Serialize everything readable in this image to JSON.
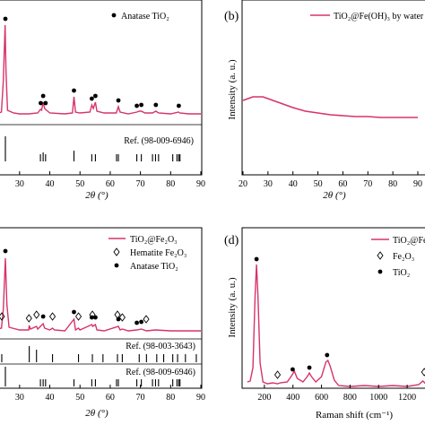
{
  "chart_data": [
    {
      "panel": "a",
      "type": "line",
      "xlabel": "2θ (°)",
      "xlim": [
        20,
        90
      ],
      "xticks": [
        30,
        40,
        50,
        60,
        70,
        80,
        90
      ],
      "legend": [
        "Anatase TiO₂"
      ],
      "ref_label": "Ref. (98-009-6946)",
      "series": [
        {
          "name": "pattern",
          "color": "#d6336c",
          "points": [
            [
              20,
              128
            ],
            [
              22,
              127
            ],
            [
              24,
              125
            ],
            [
              24.6,
              90
            ],
            [
              25.2,
              28
            ],
            [
              25.5,
              80
            ],
            [
              26,
              123
            ],
            [
              28,
              126
            ],
            [
              30,
              127
            ],
            [
              33,
              127
            ],
            [
              36,
              126
            ],
            [
              36.9,
              122
            ],
            [
              37.3,
              123
            ],
            [
              37.8,
              114
            ],
            [
              38.3,
              121
            ],
            [
              38.6,
              122
            ],
            [
              40,
              126
            ],
            [
              45,
              127
            ],
            [
              47.5,
              126
            ],
            [
              48.0,
              108
            ],
            [
              48.5,
              125
            ],
            [
              50,
              126
            ],
            [
              53.3,
              125
            ],
            [
              53.9,
              117
            ],
            [
              54.4,
              121
            ],
            [
              55.1,
              114
            ],
            [
              55.6,
              124
            ],
            [
              58,
              126
            ],
            [
              62,
              126
            ],
            [
              62.7,
              119
            ],
            [
              63.3,
              125
            ],
            [
              66,
              127
            ],
            [
              68.8,
              125
            ],
            [
              69.6,
              124
            ],
            [
              70.3,
              124
            ],
            [
              71.5,
              126
            ],
            [
              74,
              126
            ],
            [
              75.1,
              124
            ],
            [
              76,
              126
            ],
            [
              80,
              127
            ],
            [
              82.6,
              125
            ],
            [
              83,
              126
            ],
            [
              86,
              127
            ],
            [
              90,
              127
            ]
          ]
        }
      ],
      "markers": [
        {
          "x": 25.3,
          "label": "●"
        },
        {
          "x": 37.0,
          "label": "●"
        },
        {
          "x": 37.8,
          "label": "●"
        },
        {
          "x": 38.6,
          "label": "●"
        },
        {
          "x": 48.0,
          "label": "●"
        },
        {
          "x": 53.9,
          "label": "●"
        },
        {
          "x": 55.1,
          "label": "●"
        },
        {
          "x": 62.7,
          "label": "●"
        },
        {
          "x": 68.8,
          "label": "●"
        },
        {
          "x": 70.3,
          "label": "●"
        },
        {
          "x": 75.1,
          "label": "●"
        },
        {
          "x": 82.7,
          "label": "●"
        }
      ],
      "ref_sticks": [
        25.3,
        36.9,
        37.8,
        38.6,
        48.0,
        53.9,
        55.1,
        62.1,
        62.7,
        68.8,
        70.3,
        74.0,
        75.0,
        76.0,
        80.7,
        82.1,
        82.7,
        83.1
      ]
    },
    {
      "panel": "b",
      "type": "line",
      "label": "(b)",
      "xlabel": "2θ (°)",
      "ylabel": "Intensity (a. u.)",
      "xlim": [
        20,
        90
      ],
      "xticks": [
        20,
        30,
        40,
        50,
        60,
        70,
        80,
        90
      ],
      "legend": [
        "TiO₂@Fe(OH)₃ by water"
      ],
      "series": [
        {
          "name": "TiO₂@Fe(OH)₃ by water",
          "color": "#d6336c",
          "points": [
            [
              20,
              112
            ],
            [
              22,
              110
            ],
            [
              24,
              108
            ],
            [
              26,
              108
            ],
            [
              28,
              108
            ],
            [
              30,
              110
            ],
            [
              32,
              112
            ],
            [
              35,
              115
            ],
            [
              40,
              120
            ],
            [
              45,
              124
            ],
            [
              50,
              126
            ],
            [
              55,
              128
            ],
            [
              60,
              129
            ],
            [
              65,
              130
            ],
            [
              70,
              130
            ],
            [
              75,
              131
            ],
            [
              80,
              131
            ],
            [
              85,
              131
            ],
            [
              90,
              131
            ]
          ]
        }
      ]
    },
    {
      "panel": "c",
      "type": "line",
      "xlabel": "2θ (°)",
      "xlim": [
        20,
        90
      ],
      "xticks": [
        30,
        40,
        50,
        60,
        70,
        80,
        90
      ],
      "legend": [
        "TiO₂@Fe₂O₃",
        "Hematite Fe₂O₃",
        "Anatase TiO₂"
      ],
      "ref_labels": [
        "Ref. (98-003-3643)",
        "Ref. (98-009-6946)"
      ],
      "series": [
        {
          "name": "TiO₂@Fe₂O₃",
          "color": "#d6336c",
          "points": [
            [
              20,
              368
            ],
            [
              22,
              367
            ],
            [
              24,
              366
            ],
            [
              24.6,
              345
            ],
            [
              25.3,
              288
            ],
            [
              25.8,
              340
            ],
            [
              26.5,
              365
            ],
            [
              30,
              368
            ],
            [
              33,
              368
            ],
            [
              33.2,
              363
            ],
            [
              33.6,
              367
            ],
            [
              35.6,
              364
            ],
            [
              36,
              367
            ],
            [
              37.8,
              361
            ],
            [
              38.3,
              366
            ],
            [
              40,
              368
            ],
            [
              40.9,
              366
            ],
            [
              41.5,
              368
            ],
            [
              45,
              369
            ],
            [
              48.0,
              356
            ],
            [
              48.5,
              368
            ],
            [
              49.5,
              366
            ],
            [
              50,
              368
            ],
            [
              53.9,
              362
            ],
            [
              54.2,
              364
            ],
            [
              55.1,
              362
            ],
            [
              55.6,
              368
            ],
            [
              58,
              369
            ],
            [
              62.7,
              364
            ],
            [
              63.3,
              368
            ],
            [
              64,
              367
            ],
            [
              66,
              369
            ],
            [
              68.8,
              368
            ],
            [
              70.3,
              367
            ],
            [
              72,
              369
            ],
            [
              75,
              368
            ],
            [
              80,
              369
            ],
            [
              85,
              369
            ],
            [
              90,
              369
            ]
          ]
        }
      ],
      "hematite_markers": [
        24.1,
        33.1,
        35.6,
        40.9,
        49.5,
        54.1,
        62.4,
        64.0,
        71.9
      ],
      "anatase_markers": [
        25.3,
        37.8,
        48.0,
        53.9,
        55.1,
        62.7,
        68.8,
        70.3
      ],
      "ref_sticks_top": [
        24.1,
        33.2,
        35.6,
        40.9,
        49.5,
        54.1,
        57.6,
        62.4,
        64.0,
        69.6,
        72.0,
        75.4,
        77.7,
        80.7,
        82.3,
        84.9,
        88.5
      ],
      "ref_sticks_bottom": [
        25.3,
        36.9,
        37.8,
        38.6,
        48.0,
        53.9,
        55.1,
        62.1,
        62.7,
        68.8,
        70.3,
        74.0,
        75.0,
        76.0,
        80.7,
        82.1,
        82.7,
        83.1
      ]
    },
    {
      "panel": "d",
      "type": "line",
      "label": "(d)",
      "xlabel": "Raman shift (cm⁻¹)",
      "ylabel": "Intensity (a. u.)",
      "xlim": [
        50,
        1350
      ],
      "xticks": [
        200,
        400,
        600,
        800,
        1000,
        1200
      ],
      "legend": [
        "TiO₂@Fe",
        "Fe₂O₃",
        "TiO₂"
      ],
      "series": [
        {
          "name": "TiO₂@Fe",
          "color": "#d6336c",
          "points": [
            [
              80,
              426
            ],
            [
              100,
              425
            ],
            [
              120,
              410
            ],
            [
              135,
              330
            ],
            [
              145,
              295
            ],
            [
              155,
              330
            ],
            [
              170,
              405
            ],
            [
              190,
              426
            ],
            [
              220,
              428
            ],
            [
              260,
              427
            ],
            [
              292,
              428
            ],
            [
              310,
              427
            ],
            [
              360,
              426
            ],
            [
              395,
              418
            ],
            [
              410,
              414
            ],
            [
              430,
              422
            ],
            [
              470,
              426
            ],
            [
              500,
              420
            ],
            [
              515,
              416
            ],
            [
              530,
              420
            ],
            [
              560,
              426
            ],
            [
              600,
              420
            ],
            [
              630,
              404
            ],
            [
              645,
              402
            ],
            [
              660,
              408
            ],
            [
              690,
              424
            ],
            [
              720,
              430
            ],
            [
              800,
              431
            ],
            [
              900,
              430
            ],
            [
              1000,
              431
            ],
            [
              1100,
              430
            ],
            [
              1200,
              431
            ],
            [
              1280,
              429
            ],
            [
              1310,
              425
            ],
            [
              1330,
              428
            ],
            [
              1350,
              429
            ]
          ]
        }
      ],
      "tio2_markers": [
        145,
        398,
        515,
        639
      ],
      "fe2o3_markers": [
        292,
        1320
      ]
    }
  ],
  "colors": {
    "series": "#d6336c",
    "axis": "#000000"
  }
}
